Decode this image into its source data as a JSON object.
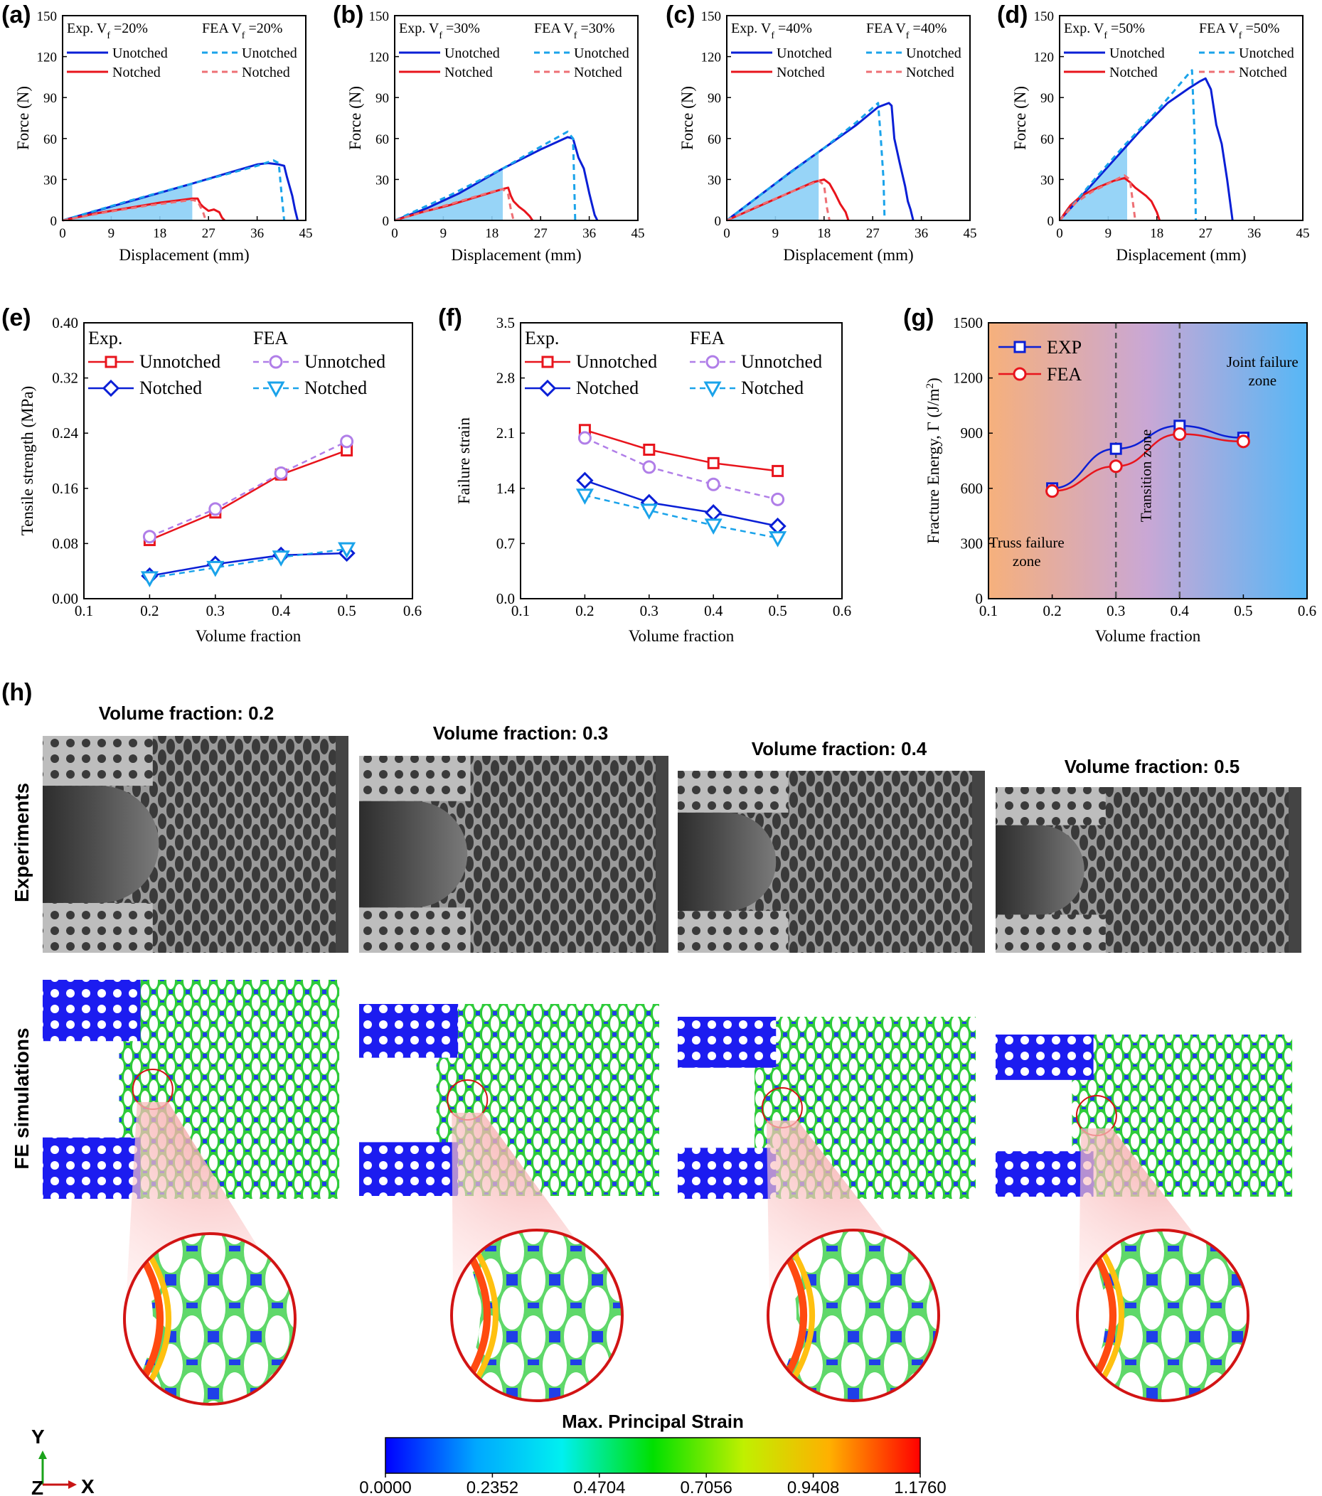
{
  "chart_data": [
    {
      "id": "a",
      "panel_label": "(a)",
      "type": "line",
      "xlabel": "Displacement (mm)",
      "ylabel": "Force (N)",
      "xlim": [
        0,
        45
      ],
      "ylim": [
        0,
        150
      ],
      "xticks": [
        "0",
        "9",
        "18",
        "27",
        "36",
        "45"
      ],
      "yticks": [
        "0",
        "30",
        "60",
        "90",
        "120",
        "150"
      ],
      "legend_exp": "Exp. V",
      "legend_fea": "FEA V",
      "sub": "f",
      "vf_label": "=20%",
      "labels": {
        "unnotched": "Unotched",
        "notched": "Notched"
      },
      "shade_end": 24,
      "series": [
        {
          "name": "Exp. Unnotched",
          "points": [
            [
              0,
              0
            ],
            [
              8,
              9
            ],
            [
              16,
              18
            ],
            [
              24,
              27
            ],
            [
              30,
              34
            ],
            [
              36,
              41
            ],
            [
              38,
              42
            ],
            [
              40,
              41
            ],
            [
              41,
              40
            ],
            [
              41.5,
              32
            ],
            [
              42,
              25
            ],
            [
              42.5,
              18
            ],
            [
              43,
              8
            ],
            [
              43.5,
              0
            ]
          ]
        },
        {
          "name": "Exp. Notched",
          "points": [
            [
              0,
              0
            ],
            [
              6,
              5
            ],
            [
              12,
              9
            ],
            [
              18,
              13
            ],
            [
              24,
              16
            ],
            [
              25,
              16
            ],
            [
              25.5,
              12
            ],
            [
              26,
              10
            ],
            [
              27,
              7
            ],
            [
              28,
              8
            ],
            [
              29,
              6
            ],
            [
              29.5,
              2
            ],
            [
              30,
              0
            ]
          ]
        },
        {
          "name": "FEA Unnotched",
          "points": [
            [
              0,
              0
            ],
            [
              12,
              14
            ],
            [
              24,
              27
            ],
            [
              36,
              40
            ],
            [
              39,
              44
            ],
            [
              40,
              42
            ],
            [
              40.5,
              20
            ],
            [
              41,
              0
            ]
          ]
        },
        {
          "name": "FEA Notched",
          "points": [
            [
              0,
              0
            ],
            [
              8,
              6
            ],
            [
              16,
              11
            ],
            [
              24,
              15
            ],
            [
              25,
              14
            ],
            [
              26,
              6
            ],
            [
              26.5,
              0
            ]
          ]
        }
      ]
    },
    {
      "id": "b",
      "panel_label": "(b)",
      "type": "line",
      "xlabel": "Displacement (mm)",
      "ylabel": "Force (N)",
      "xlim": [
        0,
        45
      ],
      "ylim": [
        0,
        150
      ],
      "xticks": [
        "0",
        "9",
        "18",
        "27",
        "36",
        "45"
      ],
      "yticks": [
        "0",
        "30",
        "60",
        "90",
        "120",
        "150"
      ],
      "legend_exp": "Exp. V",
      "legend_fea": "FEA V",
      "sub": "f",
      "vf_label": "=30%",
      "labels": {
        "unnotched": "Unotched",
        "notched": "Notched"
      },
      "shade_end": 20,
      "series": [
        {
          "name": "Exp. Unnotched",
          "points": [
            [
              0,
              0
            ],
            [
              6,
              9
            ],
            [
              12,
              20
            ],
            [
              20,
              38
            ],
            [
              27,
              52
            ],
            [
              32,
              61
            ],
            [
              33,
              60
            ],
            [
              34,
              46
            ],
            [
              35,
              38
            ],
            [
              36,
              20
            ],
            [
              36.5,
              12
            ],
            [
              37,
              4
            ],
            [
              37.5,
              0
            ]
          ]
        },
        {
          "name": "Exp. Notched",
          "points": [
            [
              0,
              0
            ],
            [
              5,
              6
            ],
            [
              10,
              11
            ],
            [
              15,
              17
            ],
            [
              20,
              23
            ],
            [
              21,
              24
            ],
            [
              21.5,
              18
            ],
            [
              22,
              14
            ],
            [
              23,
              10
            ],
            [
              24,
              7
            ],
            [
              25,
              3
            ],
            [
              25.5,
              0
            ]
          ]
        },
        {
          "name": "FEA Unnotched",
          "points": [
            [
              0,
              0
            ],
            [
              10,
              18
            ],
            [
              20,
              38
            ],
            [
              27,
              54
            ],
            [
              32,
              65
            ],
            [
              33,
              60
            ],
            [
              33.2,
              30
            ],
            [
              33.4,
              0
            ]
          ]
        },
        {
          "name": "FEA Notched",
          "points": [
            [
              0,
              0
            ],
            [
              6,
              7
            ],
            [
              12,
              14
            ],
            [
              18,
              21
            ],
            [
              20,
              23
            ],
            [
              21,
              19
            ],
            [
              21.5,
              8
            ],
            [
              22,
              0
            ]
          ]
        }
      ]
    },
    {
      "id": "c",
      "panel_label": "(c)",
      "type": "line",
      "xlabel": "Displacement (mm)",
      "ylabel": "Force (N)",
      "xlim": [
        0,
        45
      ],
      "ylim": [
        0,
        150
      ],
      "xticks": [
        "0",
        "9",
        "18",
        "27",
        "36",
        "45"
      ],
      "yticks": [
        "0",
        "30",
        "60",
        "90",
        "120",
        "150"
      ],
      "legend_exp": "Exp. V",
      "legend_fea": "FEA V",
      "sub": "f",
      "vf_label": "=40%",
      "labels": {
        "unnotched": "Unotched",
        "notched": "Notched"
      },
      "shade_end": 17,
      "series": [
        {
          "name": "Exp. Unnotched",
          "points": [
            [
              0,
              0
            ],
            [
              6,
              18
            ],
            [
              12,
              36
            ],
            [
              18,
              53
            ],
            [
              24,
              70
            ],
            [
              28,
              83
            ],
            [
              30,
              86
            ],
            [
              30.5,
              84
            ],
            [
              31,
              60
            ],
            [
              32,
              42
            ],
            [
              33,
              25
            ],
            [
              33.5,
              14
            ],
            [
              34,
              8
            ],
            [
              34.5,
              0
            ]
          ]
        },
        {
          "name": "Exp. Notched",
          "points": [
            [
              0,
              0
            ],
            [
              4,
              7
            ],
            [
              8,
              14
            ],
            [
              12,
              21
            ],
            [
              16,
              28
            ],
            [
              18,
              30
            ],
            [
              19,
              27
            ],
            [
              20,
              20
            ],
            [
              21,
              12
            ],
            [
              22,
              6
            ],
            [
              22.5,
              0
            ]
          ]
        },
        {
          "name": "FEA Unnotched",
          "points": [
            [
              0,
              0
            ],
            [
              9,
              27
            ],
            [
              18,
              53
            ],
            [
              24,
              72
            ],
            [
              28,
              86
            ],
            [
              28.5,
              60
            ],
            [
              29,
              30
            ],
            [
              29.2,
              0
            ]
          ]
        },
        {
          "name": "FEA Notched",
          "points": [
            [
              0,
              0
            ],
            [
              6,
              11
            ],
            [
              12,
              21
            ],
            [
              17,
              29
            ],
            [
              18,
              26
            ],
            [
              18.5,
              10
            ],
            [
              19,
              0
            ]
          ]
        }
      ]
    },
    {
      "id": "d",
      "panel_label": "(d)",
      "type": "line",
      "xlabel": "Displacement (mm)",
      "ylabel": "Force (N)",
      "xlim": [
        0,
        45
      ],
      "ylim": [
        0,
        150
      ],
      "xticks": [
        "0",
        "9",
        "18",
        "27",
        "36",
        "45"
      ],
      "yticks": [
        "0",
        "30",
        "60",
        "90",
        "120",
        "150"
      ],
      "legend_exp": "Exp. V",
      "legend_fea": "FEA V",
      "sub": "f",
      "vf_label": "=50%",
      "labels": {
        "unnotched": "Unotched",
        "notched": "Notched"
      },
      "shade_end": 12.5,
      "series": [
        {
          "name": "Exp. Unnotched",
          "points": [
            [
              0,
              0
            ],
            [
              5,
              22
            ],
            [
              10,
              44
            ],
            [
              15,
              66
            ],
            [
              20,
              86
            ],
            [
              24,
              97
            ],
            [
              26,
              102
            ],
            [
              27,
              104
            ],
            [
              28,
              96
            ],
            [
              29,
              70
            ],
            [
              30,
              56
            ],
            [
              31,
              30
            ],
            [
              31.5,
              15
            ],
            [
              32,
              0
            ]
          ]
        },
        {
          "name": "Exp. Notched",
          "points": [
            [
              0,
              0
            ],
            [
              2,
              11
            ],
            [
              4,
              18
            ],
            [
              7,
              24
            ],
            [
              10,
              29
            ],
            [
              12,
              31
            ],
            [
              13,
              28
            ],
            [
              14,
              24
            ],
            [
              16,
              18
            ],
            [
              17,
              14
            ],
            [
              18,
              6
            ],
            [
              18.5,
              0
            ]
          ]
        },
        {
          "name": "FEA Unnotched",
          "points": [
            [
              0,
              0
            ],
            [
              6,
              28
            ],
            [
              12,
              55
            ],
            [
              18,
              80
            ],
            [
              24,
              108
            ],
            [
              24.5,
              110
            ],
            [
              25,
              60
            ],
            [
              25.2,
              0
            ]
          ]
        },
        {
          "name": "FEA Notched",
          "points": [
            [
              0,
              0
            ],
            [
              3,
              13
            ],
            [
              6,
              21
            ],
            [
              9,
              27
            ],
            [
              12,
              33
            ],
            [
              13,
              30
            ],
            [
              13.5,
              15
            ],
            [
              14,
              0
            ]
          ]
        }
      ]
    },
    {
      "id": "e",
      "panel_label": "(e)",
      "type": "line",
      "xlabel": "Volume fraction",
      "ylabel": "Tensile strength (MPa)",
      "xlim": [
        0.1,
        0.6
      ],
      "ylim": [
        0,
        0.4
      ],
      "xticks": [
        "0.1",
        "0.2",
        "0.3",
        "0.4",
        "0.5",
        "0.6"
      ],
      "yticks": [
        "0.00",
        "0.08",
        "0.16",
        "0.24",
        "0.32",
        "0.40"
      ],
      "legend_titles": [
        "Exp.",
        "FEA"
      ],
      "x": [
        0.2,
        0.3,
        0.4,
        0.5
      ],
      "series": [
        {
          "name": "Unnotched",
          "group": "Exp.",
          "values": [
            0.085,
            0.125,
            0.18,
            0.215
          ]
        },
        {
          "name": "Notched",
          "group": "Exp.",
          "values": [
            0.033,
            0.05,
            0.063,
            0.066
          ]
        },
        {
          "name": "Unnotched",
          "group": "FEA",
          "values": [
            0.09,
            0.13,
            0.182,
            0.228
          ]
        },
        {
          "name": "Notched",
          "group": "FEA",
          "values": [
            0.03,
            0.045,
            0.06,
            0.072
          ]
        }
      ]
    },
    {
      "id": "f",
      "panel_label": "(f)",
      "type": "line",
      "xlabel": "Volume fraction",
      "ylabel": "Failure strain",
      "xlim": [
        0.1,
        0.6
      ],
      "ylim": [
        0,
        3.5
      ],
      "xticks": [
        "0.1",
        "0.2",
        "0.3",
        "0.4",
        "0.5",
        "0.6"
      ],
      "yticks": [
        "0.0",
        "0.7",
        "1.4",
        "2.1",
        "2.8",
        "3.5"
      ],
      "legend_titles": [
        "Exp.",
        "FEA"
      ],
      "x": [
        0.2,
        0.3,
        0.4,
        0.5
      ],
      "series": [
        {
          "name": "Unnotched",
          "group": "Exp.",
          "values": [
            2.14,
            1.89,
            1.72,
            1.62
          ]
        },
        {
          "name": "Notched",
          "group": "Exp.",
          "values": [
            1.5,
            1.22,
            1.09,
            0.92
          ]
        },
        {
          "name": "Unnotched",
          "group": "FEA",
          "values": [
            2.04,
            1.67,
            1.45,
            1.26
          ]
        },
        {
          "name": "Notched",
          "group": "FEA",
          "values": [
            1.31,
            1.12,
            0.93,
            0.77
          ]
        }
      ]
    },
    {
      "id": "g",
      "panel_label": "(g)",
      "type": "line",
      "xlabel": "Volume fraction",
      "ylabel": "Fracture Energy, Γ (J/m",
      "ylabel_sup": "2",
      "ylabel_end": ")",
      "xlim": [
        0.1,
        0.6
      ],
      "ylim": [
        0,
        1500
      ],
      "xticks": [
        "0.1",
        "0.2",
        "0.3",
        "0.4",
        "0.5",
        "0.6"
      ],
      "yticks": [
        "0",
        "300",
        "600",
        "900",
        "1200",
        "1500"
      ],
      "x": [
        0.2,
        0.3,
        0.4,
        0.5
      ],
      "zones": [
        "Truss failure",
        "zone",
        "Transition zone",
        "Joint failure",
        "zone"
      ],
      "series": [
        {
          "name": "EXP",
          "values": [
            600,
            815,
            940,
            875
          ]
        },
        {
          "name": "FEA",
          "values": [
            585,
            720,
            895,
            855
          ]
        }
      ]
    }
  ],
  "figure_h": {
    "panel_label": "(h)",
    "columns": [
      "Volume fraction: 0.2",
      "Volume fraction: 0.3",
      "Volume fraction: 0.4",
      "Volume fraction: 0.5"
    ],
    "rows": [
      "Experiments",
      "FE simulations"
    ],
    "axes": {
      "y": "Y",
      "z": "Z",
      "x": "X"
    },
    "colorbar": {
      "title": "Max. Principal Strain",
      "ticks": [
        "0.0000",
        "0.2352",
        "0.4704",
        "0.7056",
        "0.9408",
        "1.1760"
      ],
      "colors": [
        "#0000ff",
        "#00a8ff",
        "#00f0f0",
        "#00e000",
        "#c0f000",
        "#ffb000",
        "#ff0000"
      ]
    }
  },
  "colors": {
    "exp_unnotched": "#0a1fd6",
    "exp_notched": "#e8141c",
    "fea_unnotched": "#1aa3ea",
    "fea_notched": "#ee6f74",
    "fea_unnotched_e": "#b07ee8",
    "shade": "#8ccff6"
  }
}
